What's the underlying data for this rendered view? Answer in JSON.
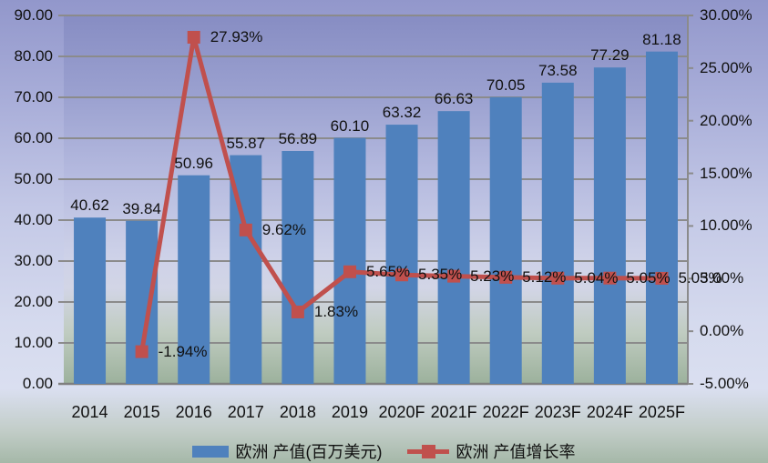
{
  "chart_data": {
    "type": "bar",
    "subtype": "combo-bar-line-dual-axis",
    "title": "",
    "grid": true,
    "categories": [
      "2014",
      "2015",
      "2016",
      "2017",
      "2018",
      "2019",
      "2020F",
      "2021F",
      "2022F",
      "2023F",
      "2024F",
      "2025F"
    ],
    "series": [
      {
        "name": "欧洲 产值(百万美元)",
        "type": "bar",
        "axis": "left",
        "color": "#4F81BD",
        "values": [
          40.62,
          39.84,
          50.96,
          55.87,
          56.89,
          60.1,
          63.32,
          66.63,
          70.05,
          73.58,
          77.29,
          81.18
        ],
        "labels": [
          "40.62",
          "39.84",
          "50.96",
          "55.87",
          "56.89",
          "60.10",
          "63.32",
          "66.63",
          "70.05",
          "73.58",
          "77.29",
          "81.18"
        ]
      },
      {
        "name": "欧洲 产值增长率",
        "type": "line",
        "axis": "right",
        "color": "#C0504D",
        "values": [
          null,
          -1.94,
          27.93,
          9.62,
          1.83,
          5.65,
          5.35,
          5.23,
          5.12,
          5.04,
          5.05,
          5.03
        ],
        "labels": [
          "",
          "-1.94%",
          "27.93%",
          "9.62%",
          "1.83%",
          "5.65%",
          "5.35%",
          "5.23%",
          "5.12%",
          "5.04%",
          "5.05%",
          "5.03%"
        ]
      }
    ],
    "axes": {
      "left": {
        "min": 0,
        "max": 90,
        "ticks": [
          "90.00",
          "80.00",
          "70.00",
          "60.00",
          "50.00",
          "40.00",
          "30.00",
          "20.00",
          "10.00",
          "0.00"
        ]
      },
      "right": {
        "min": -5,
        "max": 30,
        "ticks": [
          "30.00%",
          "25.00%",
          "20.00%",
          "15.00%",
          "10.00%",
          "5.00%",
          "0.00%",
          "-5.00%"
        ]
      }
    },
    "legend": {
      "position": "bottom",
      "entries": [
        "欧洲 产值(百万美元)",
        "欧洲 产值增长率"
      ]
    }
  },
  "colors": {
    "bar": "#4F81BD",
    "line": "#C0504D",
    "gridline": "#8b8b8b",
    "axis_line": "#7f7f7f",
    "text": "#111111"
  }
}
